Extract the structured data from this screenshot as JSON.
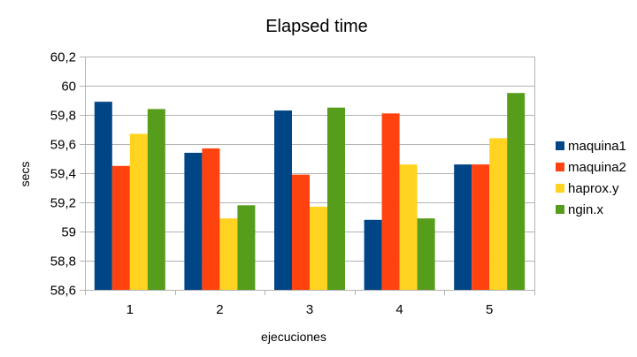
{
  "chart_data": {
    "type": "bar",
    "title": "Elapsed time",
    "xlabel": "ejecuciones",
    "ylabel": "secs",
    "categories": [
      "1",
      "2",
      "3",
      "4",
      "5"
    ],
    "ylim": [
      58.6,
      60.2
    ],
    "ytick_step": 0.2,
    "ytick_labels": [
      "58,6",
      "58,8",
      "59",
      "59,2",
      "59,4",
      "59,6",
      "59,8",
      "60",
      "60,2"
    ],
    "grid": "horizontal",
    "legend_position": "right",
    "series": [
      {
        "name": "maquina1",
        "color": "#004586",
        "values": [
          59.89,
          59.54,
          59.83,
          59.08,
          59.46
        ]
      },
      {
        "name": "maquina2",
        "color": "#ff420e",
        "values": [
          59.45,
          59.57,
          59.39,
          59.81,
          59.46
        ]
      },
      {
        "name": "haprox.y",
        "color": "#ffd320",
        "values": [
          59.67,
          59.09,
          59.17,
          59.46,
          59.64
        ]
      },
      {
        "name": "ngin.x",
        "color": "#579d1c",
        "values": [
          59.84,
          59.18,
          59.85,
          59.09,
          59.95
        ]
      }
    ]
  }
}
